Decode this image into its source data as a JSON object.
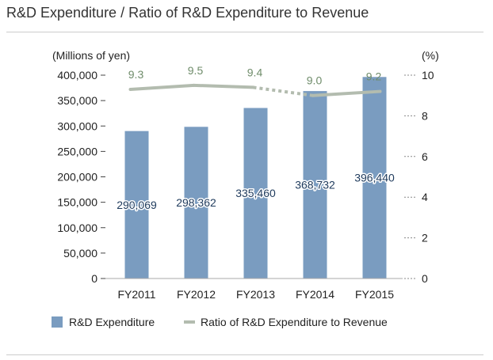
{
  "title": "R&D Expenditure / Ratio of R&D Expenditure to Revenue",
  "chart_data": {
    "type": "bar",
    "title": "R&D Expenditure / Ratio of R&D Expenditure to Revenue",
    "categories": [
      "FY2011",
      "FY2012",
      "FY2013",
      "FY2014",
      "FY2015"
    ],
    "ylabel": "(Millions of yen)",
    "y2label": "(%)",
    "ylim": [
      0,
      400000
    ],
    "y2lim": [
      0,
      10
    ],
    "yticks": [
      "400,000",
      "350,000",
      "300,000",
      "250,000",
      "200,000",
      "150,000",
      "100,000",
      "50,000",
      "0"
    ],
    "y2ticks": [
      "10",
      "8",
      "6",
      "4",
      "2",
      "0"
    ],
    "series": [
      {
        "name": "R&D Expenditure",
        "type": "bar",
        "axis": "left",
        "color": "#7a9cc0",
        "values": [
          290069,
          298362,
          335460,
          368732,
          396440
        ],
        "labels": [
          "290,069",
          "298,362",
          "335,460",
          "368,732",
          "396,440"
        ]
      },
      {
        "name": "Ratio of R&D Expenditure to Revenue",
        "type": "line",
        "axis": "right",
        "color": "#b3bcaf",
        "label_color": "#6f8c6a",
        "values": [
          9.3,
          9.5,
          9.4,
          9.0,
          9.2
        ],
        "labels": [
          "9.3",
          "9.5",
          "9.4",
          "9.0",
          "9.2"
        ],
        "dashed_segment": "FY2013-FY2014"
      }
    ],
    "grid": false,
    "legend_position": "bottom-left"
  }
}
